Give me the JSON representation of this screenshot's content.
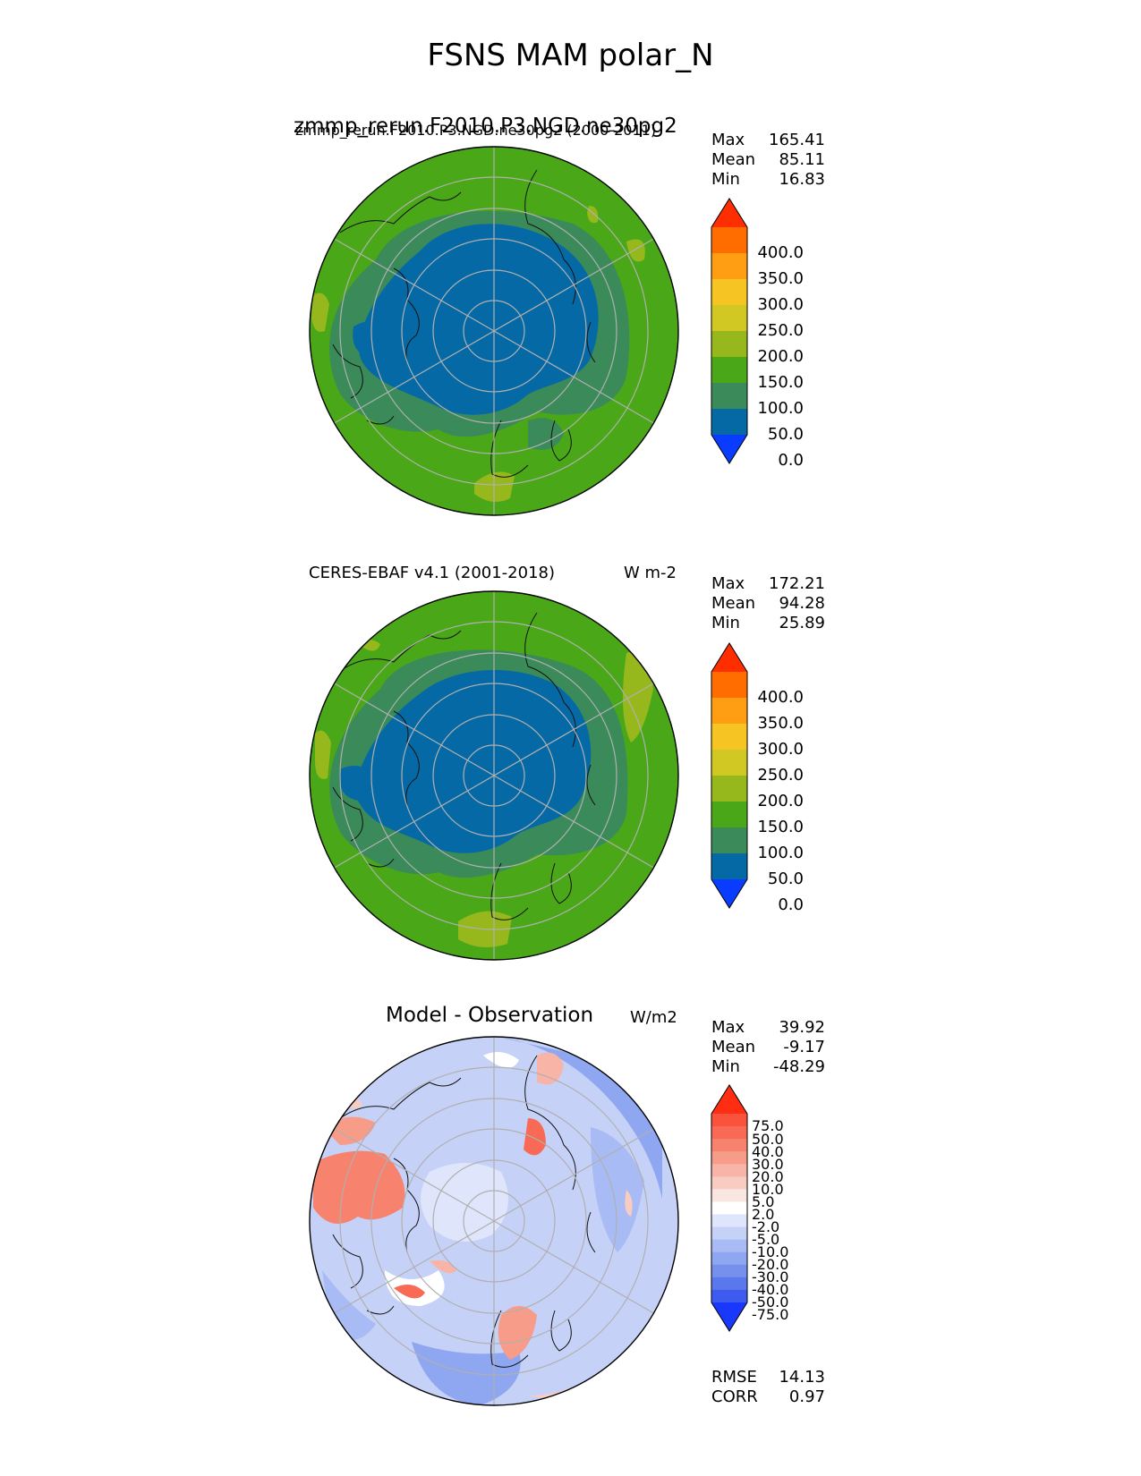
{
  "main_title": "FSNS MAM polar_N",
  "panels": [
    {
      "title_left": "zmmp_rerun.F2010.P3.NGD.ne30pg2",
      "title_left_overlay": "zmmp_rerun.F2010.P3.NGD.ne30pg2 (2000-2011)",
      "title_right": "",
      "stats": [
        {
          "label": "Max",
          "value": "165.41"
        },
        {
          "label": "Mean",
          "value": "85.11"
        },
        {
          "label": "Min",
          "value": "16.83"
        }
      ]
    },
    {
      "title_left": "CERES-EBAF v4.1 (2001-2018)",
      "title_right": "W m-2",
      "stats": [
        {
          "label": "Max",
          "value": "172.21"
        },
        {
          "label": "Mean",
          "value": "94.28"
        },
        {
          "label": "Min",
          "value": "25.89"
        }
      ]
    },
    {
      "title_left": "Model - Observation",
      "title_right": "W/m2",
      "stats": [
        {
          "label": "Max",
          "value": "39.92"
        },
        {
          "label": "Mean",
          "value": "-9.17"
        },
        {
          "label": "Min",
          "value": "-48.29"
        }
      ],
      "metrics": [
        {
          "label": "RMSE",
          "value": "14.13"
        },
        {
          "label": "CORR",
          "value": "0.97"
        }
      ]
    }
  ],
  "colorbar_main": {
    "ticks": [
      "400.0",
      "350.0",
      "300.0",
      "250.0",
      "200.0",
      "150.0",
      "100.0",
      "50.0",
      "0.0"
    ],
    "colors": [
      "#ff2e00",
      "#ff6c00",
      "#ff9e12",
      "#f6c423",
      "#d1c823",
      "#96b81d",
      "#4aa818",
      "#3b8a5a",
      "#0569a6",
      "#0a3cff"
    ]
  },
  "colorbar_diff": {
    "ticks": [
      "75.0",
      "50.0",
      "40.0",
      "30.0",
      "20.0",
      "10.0",
      "5.0",
      "2.0",
      "-2.0",
      "-5.0",
      "-10.0",
      "-20.0",
      "-30.0",
      "-40.0",
      "-50.0",
      "-75.0"
    ],
    "colors": [
      "#ff2e12",
      "#f9533d",
      "#f86a55",
      "#f7826e",
      "#f89c8a",
      "#f8b4a6",
      "#f9ccc2",
      "#fae6e0",
      "#ffffff",
      "#dfe5fb",
      "#c6d1f7",
      "#a9bbf4",
      "#8fa6f1",
      "#7690ee",
      "#5a77ec",
      "#3d5bee",
      "#1a38fb"
    ]
  }
}
